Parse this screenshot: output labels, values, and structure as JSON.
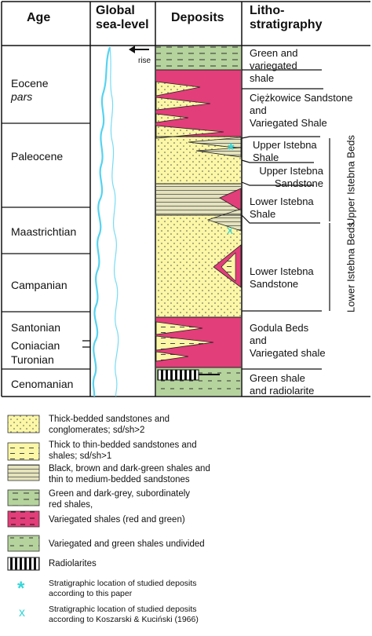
{
  "headers": {
    "age": "Age",
    "sea_level": [
      "Global",
      "sea-level"
    ],
    "deposits": "Deposits",
    "litho": [
      "Litho-",
      "stratigraphy"
    ]
  },
  "rise_label": "rise",
  "ages": {
    "eocene": "Eocene",
    "pars": "pars",
    "paleocene": "Paleocene",
    "maastrichtian": "Maastrichtian",
    "campanian": "Campanian",
    "santonian": "Santonian",
    "coniacian": "Coniacian",
    "turonian": "Turonian",
    "cenomanian": "Cenomanian"
  },
  "lithostratigraphy": {
    "green_variegated": [
      "Green and",
      "variegated",
      "shale"
    ],
    "ciezkowice": [
      "Ciężkowice Sandstone",
      "and",
      "Variegated Shale"
    ],
    "upper_istebna_shale": [
      "Upper Istebna",
      "Shale"
    ],
    "upper_istebna_sandstone": [
      "Upper Istebna",
      "Sandstone"
    ],
    "lower_istebna_shale": [
      "Lower Istebna",
      "Shale"
    ],
    "lower_istebna_sandstone": [
      "Lower Istebna",
      "Sandstone"
    ],
    "godula": [
      "Godula Beds",
      "and",
      "Variegated shale"
    ],
    "green_shale_radiolarite": [
      "Green shale",
      "and radiolarite"
    ],
    "upper_istebna_beds": "Upper Istebna Beds",
    "lower_istebna_beds": "Lower Istebna Beds"
  },
  "legend": [
    {
      "key": "thick_sandstone",
      "text": [
        "Thick-bedded sandstones and",
        "conglomerates; sd/sh>2"
      ]
    },
    {
      "key": "thin_sandstone",
      "text": [
        "Thick to thin-bedded sandstones and",
        "shales; sd/sh>1"
      ]
    },
    {
      "key": "black_shales",
      "text": [
        "Black, brown and dark-green shales and",
        "thin to medium-bedded sandstones"
      ]
    },
    {
      "key": "green_grey",
      "text": [
        "Green and dark-grey, subordinately",
        "red shales,"
      ]
    },
    {
      "key": "variegated",
      "text": [
        "Variegated shales (red and green)"
      ]
    },
    {
      "key": "undivided",
      "text": [
        "Variegated and green shales undivided"
      ]
    },
    {
      "key": "radiolarites",
      "text": [
        "Radiolarites"
      ]
    },
    {
      "key": "this_paper",
      "symbol": "*",
      "text": [
        "Stratigraphic location of studied deposits",
        "according to this paper"
      ]
    },
    {
      "key": "koszarski",
      "symbol": "x",
      "text": [
        "Stratigraphic location of studied deposits",
        "according to Koszarski & Kuciński (1966)"
      ]
    }
  ],
  "colors": {
    "sand": "#fbf7a6",
    "pink": "#e23e79",
    "green": "#b5d39c",
    "black_shale": "#e4e2bb",
    "cyan": "#35d6d9",
    "sea_line": "#55d3f0"
  }
}
